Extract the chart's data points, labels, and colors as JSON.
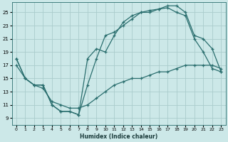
{
  "xlabel": "Humidex (Indice chaleur)",
  "ylabel": "",
  "background_color": "#cce8e8",
  "grid_color": "#aacccc",
  "line_color": "#2a6e6e",
  "xlim": [
    -0.5,
    23.5
  ],
  "ylim": [
    8.0,
    26.5
  ],
  "xticks": [
    0,
    1,
    2,
    3,
    4,
    5,
    6,
    7,
    8,
    9,
    10,
    11,
    12,
    13,
    14,
    15,
    16,
    17,
    18,
    19,
    20,
    21,
    22,
    23
  ],
  "yticks": [
    9,
    11,
    13,
    15,
    17,
    19,
    21,
    23,
    25
  ],
  "line1_x": [
    0,
    1,
    2,
    3,
    4,
    5,
    6,
    7,
    8,
    9,
    10,
    11,
    12,
    13,
    14,
    15,
    16,
    17,
    18,
    19,
    20,
    21,
    22,
    23
  ],
  "line1_y": [
    18,
    15,
    14,
    14,
    11,
    10,
    10,
    9.5,
    18,
    19.5,
    19,
    21.5,
    23.5,
    24.5,
    25,
    25.3,
    25.5,
    25.7,
    25,
    24.5,
    21,
    19,
    16.5,
    16
  ],
  "line2_x": [
    0,
    1,
    2,
    3,
    4,
    5,
    6,
    7,
    8,
    9,
    10,
    11,
    12,
    13,
    14,
    15,
    16,
    17,
    18,
    19,
    20,
    21,
    22,
    23
  ],
  "line2_y": [
    18,
    15,
    14,
    14,
    11,
    10,
    10,
    9.5,
    14,
    18,
    21.5,
    22,
    23,
    24,
    25,
    25,
    25.5,
    26,
    26,
    25,
    21.5,
    21,
    19.5,
    16
  ],
  "line3_x": [
    0,
    1,
    2,
    3,
    4,
    5,
    6,
    7,
    8,
    9,
    10,
    11,
    12,
    13,
    14,
    15,
    16,
    17,
    18,
    19,
    20,
    21,
    22,
    23
  ],
  "line3_y": [
    17,
    15,
    14,
    13.5,
    11.5,
    11,
    10.5,
    10.5,
    11,
    12,
    13,
    14,
    14.5,
    15,
    15,
    15.5,
    16,
    16,
    16.5,
    17,
    17,
    17,
    17,
    16.5
  ]
}
